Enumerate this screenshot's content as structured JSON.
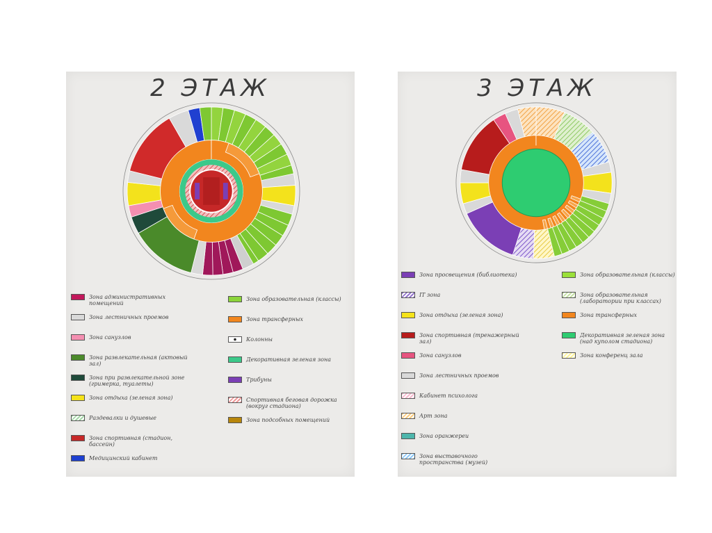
{
  "floors": [
    {
      "title": "2 ЭТАЖ",
      "legend_left": [
        {
          "label": "Зона административных помещений",
          "color": "#c2185b"
        },
        {
          "label": "Зона лестничных проемов",
          "color": "#d9d9d9"
        },
        {
          "label": "Зона санузлов",
          "color": "#f48fb1"
        },
        {
          "label": "Зона развлекательная (актовый зал)",
          "color": "#4c8a2b"
        },
        {
          "label": "Зона при развлекательной зоне (гримерка, туалеты)",
          "color": "#1f4a3a"
        },
        {
          "label": "Зона отдыха (зеленая зона)",
          "color": "#f5e31a"
        },
        {
          "label": "Раздевалки и душевые",
          "color": "#a5d6a7",
          "hatch": true
        },
        {
          "label": "Зона спортивная (стадион, бассейн)",
          "color": "#c62828"
        },
        {
          "label": "Медицинский кабинет",
          "color": "#1e40d0"
        }
      ],
      "legend_right": [
        {
          "label": "Зона образовательная (классы)",
          "color": "#8bd43a"
        },
        {
          "label": "Зона трансферных",
          "color": "#f2861e"
        },
        {
          "label": "Колонны",
          "color": "#ffffff",
          "dot": true
        },
        {
          "label": "Декоративная зеленая зона",
          "color": "#3cc98a"
        },
        {
          "label": "Трибуны",
          "color": "#7b3fb5"
        },
        {
          "label": "Спортивная беговая дорожка (вокруг стадиона)",
          "color": "#ef9a9a",
          "hatch": true
        },
        {
          "label": "Зона подсобных помещений",
          "color": "#b8860b"
        }
      ]
    },
    {
      "title": "3 ЭТАЖ",
      "legend_left": [
        {
          "label": "Зона просвещения (библиотека)",
          "color": "#7b3fb5"
        },
        {
          "label": "IT зона",
          "color": "#9575cd",
          "hatch": true
        },
        {
          "label": "Зона отдыха (зеленая зона)",
          "color": "#f5e31a"
        },
        {
          "label": "Зона спортивная (тренажерный зал)",
          "color": "#b71c1c"
        },
        {
          "label": "Зона санузлов",
          "color": "#e75480"
        },
        {
          "label": "Зона лестничных проемов",
          "color": "#d9d9d9"
        },
        {
          "label": "Кабинет психолога",
          "color": "#f8bbd0",
          "hatch": true
        },
        {
          "label": "Арт зона",
          "color": "#ffcc80",
          "hatch": true
        },
        {
          "label": "Зона оранжереи",
          "color": "#4db6ac"
        },
        {
          "label": "Зона выставочного пространства (музей)",
          "color": "#90caf9",
          "hatch": true
        }
      ],
      "legend_right": [
        {
          "label": "Зона образовательная (классы)",
          "color": "#9be03a"
        },
        {
          "label": "Зона образовательная (лаборатории при классах)",
          "color": "#c5e1a5",
          "hatch": true
        },
        {
          "label": "Зона трансферных",
          "color": "#f2861e"
        },
        {
          "label": "Декоративная зеленая зона (над куполом стадиона)",
          "color": "#2ecc71"
        },
        {
          "label": "Зона конференц зала",
          "color": "#fff59d",
          "hatch": true
        }
      ]
    }
  ]
}
